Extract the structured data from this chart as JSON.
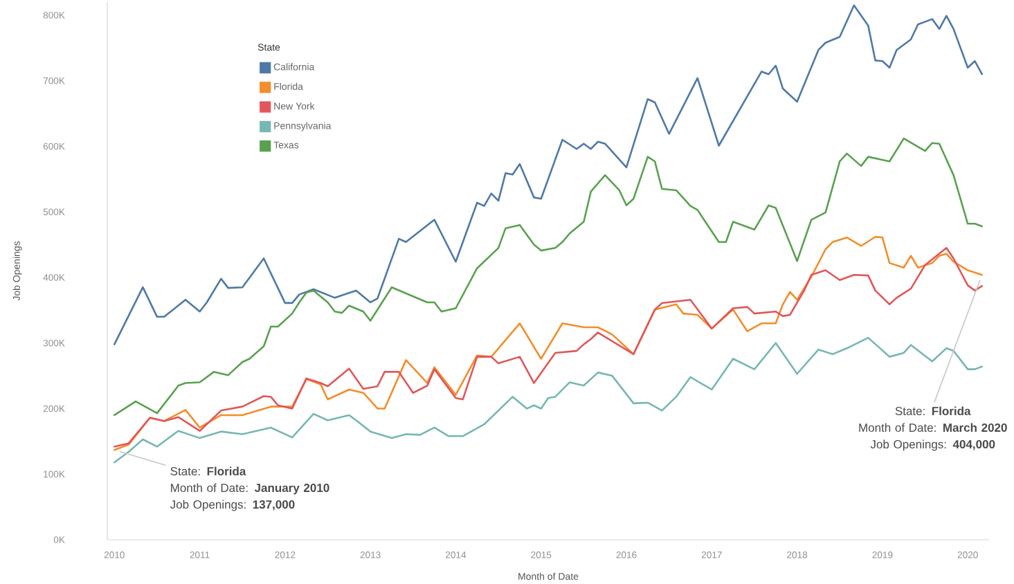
{
  "chart_data": {
    "type": "line",
    "xlabel": "Month of Date",
    "ylabel": "Job Openings",
    "legend_title": "State",
    "legend": "top left",
    "line_style": "solid",
    "xlim": [
      "2009-12",
      "2020-04"
    ],
    "ylim": [
      0,
      820000
    ],
    "xticks": [
      {
        "value": "2010",
        "label": "2010"
      },
      {
        "value": "2011",
        "label": "2011"
      },
      {
        "value": "2012",
        "label": "2012"
      },
      {
        "value": "2013",
        "label": "2013"
      },
      {
        "value": "2014",
        "label": "2014"
      },
      {
        "value": "2015",
        "label": "2015"
      },
      {
        "value": "2016",
        "label": "2016"
      },
      {
        "value": "2017",
        "label": "2017"
      },
      {
        "value": "2018",
        "label": "2018"
      },
      {
        "value": "2019",
        "label": "2019"
      },
      {
        "value": "2020",
        "label": "2020"
      }
    ],
    "yticks": [
      {
        "value": 0,
        "label": "0K"
      },
      {
        "value": 100000,
        "label": "100K"
      },
      {
        "value": 200000,
        "label": "200K"
      },
      {
        "value": 300000,
        "label": "300K"
      },
      {
        "value": 400000,
        "label": "400K"
      },
      {
        "value": 500000,
        "label": "500K"
      },
      {
        "value": 600000,
        "label": "600K"
      },
      {
        "value": 700000,
        "label": "700K"
      },
      {
        "value": 800000,
        "label": "800K"
      }
    ],
    "series": [
      {
        "name": "California",
        "color": "#4e79a7",
        "x": [
          "2010-01",
          "2010-05",
          "2010-07",
          "2010-08",
          "2010-11",
          "2011-01",
          "2011-02",
          "2011-04",
          "2011-05",
          "2011-07",
          "2011-10",
          "2012-01",
          "2012-02",
          "2012-03",
          "2012-05",
          "2012-08",
          "2012-11",
          "2013-01",
          "2013-02",
          "2013-05",
          "2013-06",
          "2013-10",
          "2014-01",
          "2014-04",
          "2014-05",
          "2014-06",
          "2014-07",
          "2014-08",
          "2014-09",
          "2014-10",
          "2014-12",
          "2015-01",
          "2015-04",
          "2015-06",
          "2015-07",
          "2015-08",
          "2015-09",
          "2015-10",
          "2016-01",
          "2016-04",
          "2016-05",
          "2016-07",
          "2016-11",
          "2017-02",
          "2017-08",
          "2017-09",
          "2017-10",
          "2017-11",
          "2018-01",
          "2018-04",
          "2018-05",
          "2018-07",
          "2018-09",
          "2018-11",
          "2018-12",
          "2019-01",
          "2019-02",
          "2019-03",
          "2019-05",
          "2019-06",
          "2019-08",
          "2019-09",
          "2019-10",
          "2019-11",
          "2020-01",
          "2020-02",
          "2020-03"
        ],
        "values": [
          298000,
          385000,
          340000,
          340000,
          366000,
          348000,
          362000,
          398000,
          384000,
          385000,
          429000,
          361000,
          361000,
          374000,
          382000,
          369000,
          380000,
          362000,
          368000,
          459000,
          454000,
          488000,
          424000,
          514000,
          509000,
          528000,
          517000,
          559000,
          557000,
          573000,
          522000,
          520000,
          610000,
          596000,
          604000,
          596000,
          607000,
          604000,
          568000,
          672000,
          667000,
          619000,
          704000,
          601000,
          714000,
          710000,
          723000,
          688000,
          668000,
          747000,
          758000,
          767000,
          815000,
          784000,
          731000,
          730000,
          720000,
          747000,
          763000,
          786000,
          794000,
          779000,
          799000,
          779000,
          720000,
          730000,
          710000
        ]
      },
      {
        "name": "Florida",
        "color": "#f28e2b",
        "x": [
          "2010-01",
          "2010-03",
          "2010-06",
          "2010-08",
          "2010-11",
          "2011-01",
          "2011-04",
          "2011-07",
          "2011-11",
          "2012-02",
          "2012-04",
          "2012-06",
          "2012-07",
          "2012-10",
          "2012-12",
          "2013-02",
          "2013-03",
          "2013-06",
          "2013-09",
          "2013-10",
          "2014-01",
          "2014-04",
          "2014-06",
          "2014-10",
          "2015-01",
          "2015-04",
          "2015-07",
          "2015-09",
          "2015-11",
          "2016-02",
          "2016-05",
          "2016-08",
          "2016-09",
          "2016-11",
          "2017-01",
          "2017-04",
          "2017-06",
          "2017-08",
          "2017-10",
          "2017-11",
          "2017-12",
          "2018-01",
          "2018-03",
          "2018-05",
          "2018-06",
          "2018-08",
          "2018-10",
          "2018-12",
          "2019-01",
          "2019-02",
          "2019-04",
          "2019-05",
          "2019-06",
          "2019-08",
          "2019-09",
          "2019-10",
          "2019-11",
          "2020-01",
          "2020-03"
        ],
        "values": [
          137000,
          145000,
          186000,
          181000,
          198000,
          171000,
          190000,
          190000,
          203000,
          203000,
          245000,
          237000,
          214000,
          229000,
          224000,
          200000,
          200000,
          274000,
          239000,
          263000,
          221000,
          281000,
          279000,
          330000,
          276000,
          330000,
          324000,
          324000,
          313000,
          283000,
          351000,
          359000,
          345000,
          343000,
          322000,
          351000,
          318000,
          330000,
          330000,
          359000,
          378000,
          366000,
          401000,
          443000,
          454000,
          461000,
          448000,
          462000,
          461000,
          422000,
          415000,
          433000,
          415000,
          422000,
          433000,
          436000,
          424000,
          411000,
          404000
        ]
      },
      {
        "name": "New York",
        "color": "#e15759",
        "x": [
          "2010-01",
          "2010-03",
          "2010-06",
          "2010-08",
          "2010-10",
          "2011-01",
          "2011-04",
          "2011-07",
          "2011-10",
          "2011-11",
          "2011-12",
          "2012-02",
          "2012-04",
          "2012-06",
          "2012-07",
          "2012-10",
          "2012-12",
          "2013-02",
          "2013-03",
          "2013-05",
          "2013-07",
          "2013-09",
          "2013-10",
          "2014-01",
          "2014-02",
          "2014-04",
          "2014-06",
          "2014-07",
          "2014-10",
          "2014-12",
          "2015-03",
          "2015-06",
          "2015-07",
          "2015-08",
          "2015-09",
          "2016-02",
          "2016-05",
          "2016-06",
          "2016-10",
          "2017-01",
          "2017-04",
          "2017-06",
          "2017-07",
          "2017-10",
          "2017-11",
          "2017-12",
          "2018-02",
          "2018-03",
          "2018-05",
          "2018-07",
          "2018-09",
          "2018-11",
          "2018-12",
          "2019-02",
          "2019-03",
          "2019-05",
          "2019-07",
          "2019-10",
          "2019-11",
          "2020-01",
          "2020-02",
          "2020-03"
        ],
        "values": [
          142000,
          147000,
          186000,
          181000,
          187000,
          166000,
          197000,
          203000,
          219000,
          218000,
          205000,
          200000,
          246000,
          239000,
          234000,
          261000,
          230000,
          234000,
          256000,
          256000,
          224000,
          235000,
          260000,
          216000,
          214000,
          279000,
          279000,
          269000,
          279000,
          239000,
          285000,
          288000,
          298000,
          306000,
          316000,
          283000,
          351000,
          361000,
          366000,
          322000,
          353000,
          355000,
          345000,
          348000,
          341000,
          343000,
          380000,
          404000,
          411000,
          396000,
          404000,
          403000,
          380000,
          359000,
          369000,
          383000,
          419000,
          445000,
          429000,
          388000,
          380000,
          387000
        ]
      },
      {
        "name": "Pennsylvania",
        "color": "#76b7b2",
        "x": [
          "2010-01",
          "2010-03",
          "2010-05",
          "2010-07",
          "2010-10",
          "2011-01",
          "2011-04",
          "2011-07",
          "2011-11",
          "2012-02",
          "2012-05",
          "2012-07",
          "2012-10",
          "2012-11",
          "2013-01",
          "2013-04",
          "2013-06",
          "2013-08",
          "2013-10",
          "2013-12",
          "2014-02",
          "2014-05",
          "2014-09",
          "2014-11",
          "2014-12",
          "2015-01",
          "2015-02",
          "2015-03",
          "2015-05",
          "2015-07",
          "2015-09",
          "2015-11",
          "2016-02",
          "2016-04",
          "2016-06",
          "2016-08",
          "2016-10",
          "2017-01",
          "2017-04",
          "2017-07",
          "2017-10",
          "2018-01",
          "2018-04",
          "2018-06",
          "2018-08",
          "2018-11",
          "2019-02",
          "2019-04",
          "2019-05",
          "2019-08",
          "2019-10",
          "2019-11",
          "2020-01",
          "2020-02",
          "2020-03"
        ],
        "values": [
          118000,
          134000,
          153000,
          142000,
          166000,
          155000,
          165000,
          161000,
          171000,
          156000,
          192000,
          182000,
          190000,
          182000,
          165000,
          155000,
          161000,
          160000,
          171000,
          158000,
          158000,
          176000,
          218000,
          200000,
          205000,
          200000,
          216000,
          218000,
          240000,
          235000,
          255000,
          250000,
          208000,
          209000,
          197000,
          218000,
          248000,
          229000,
          276000,
          260000,
          300000,
          253000,
          290000,
          283000,
          292000,
          308000,
          279000,
          285000,
          297000,
          272000,
          292000,
          288000,
          260000,
          260000,
          264000
        ]
      },
      {
        "name": "Texas",
        "color": "#59a14f",
        "x": [
          "2010-01",
          "2010-04",
          "2010-07",
          "2010-10",
          "2010-11",
          "2011-01",
          "2011-03",
          "2011-05",
          "2011-07",
          "2011-08",
          "2011-10",
          "2011-11",
          "2011-12",
          "2012-02",
          "2012-03",
          "2012-04",
          "2012-05",
          "2012-07",
          "2012-08",
          "2012-09",
          "2012-10",
          "2012-12",
          "2013-01",
          "2013-04",
          "2013-09",
          "2013-10",
          "2013-11",
          "2014-01",
          "2014-04",
          "2014-07",
          "2014-08",
          "2014-10",
          "2014-12",
          "2015-01",
          "2015-03",
          "2015-04",
          "2015-05",
          "2015-07",
          "2015-08",
          "2015-10",
          "2015-12",
          "2016-01",
          "2016-02",
          "2016-04",
          "2016-05",
          "2016-06",
          "2016-08",
          "2016-10",
          "2016-11",
          "2017-02",
          "2017-03",
          "2017-04",
          "2017-07",
          "2017-09",
          "2017-10",
          "2018-01",
          "2018-03",
          "2018-05",
          "2018-07",
          "2018-08",
          "2018-10",
          "2018-11",
          "2019-02",
          "2019-04",
          "2019-07",
          "2019-08",
          "2019-09",
          "2019-11",
          "2020-01",
          "2020-02",
          "2020-03"
        ],
        "values": [
          190000,
          211000,
          193000,
          235000,
          239000,
          240000,
          256000,
          251000,
          271000,
          276000,
          295000,
          325000,
          325000,
          345000,
          362000,
          377000,
          380000,
          362000,
          348000,
          346000,
          357000,
          348000,
          334000,
          385000,
          362000,
          362000,
          348000,
          353000,
          414000,
          445000,
          475000,
          480000,
          450000,
          441000,
          445000,
          454000,
          467000,
          485000,
          531000,
          556000,
          533000,
          510000,
          520000,
          584000,
          577000,
          535000,
          533000,
          509000,
          503000,
          454000,
          454000,
          485000,
          473000,
          510000,
          506000,
          425000,
          488000,
          499000,
          577000,
          589000,
          570000,
          584000,
          577000,
          612000,
          593000,
          605000,
          604000,
          556000,
          482000,
          482000,
          478000
        ]
      }
    ],
    "annotations": [
      {
        "text": "State: **Florida**",
        "x": "2010-01",
        "y": 137000
      },
      "Month of Date: **January 2010**",
      "Job Openings: **137,000**",
      {
        "text": "State: **Florida**",
        "x": "2020-03",
        "y": 404000
      },
      "Month of Date: **March 2020**",
      "Job Openings: **404,000**"
    ]
  }
}
